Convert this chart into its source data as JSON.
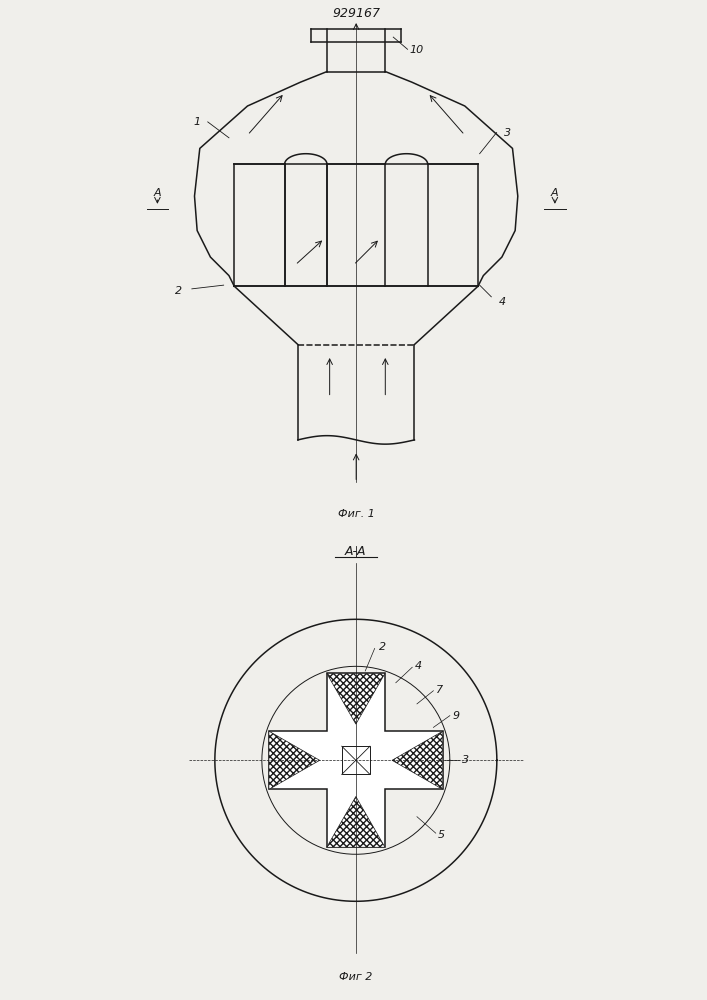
{
  "title": "929167",
  "fig1_label": "Фиг. 1",
  "fig2_label": "Фиг 2",
  "section_label": "A-A",
  "bg_color": "#f0efeb",
  "line_color": "#1a1a1a"
}
